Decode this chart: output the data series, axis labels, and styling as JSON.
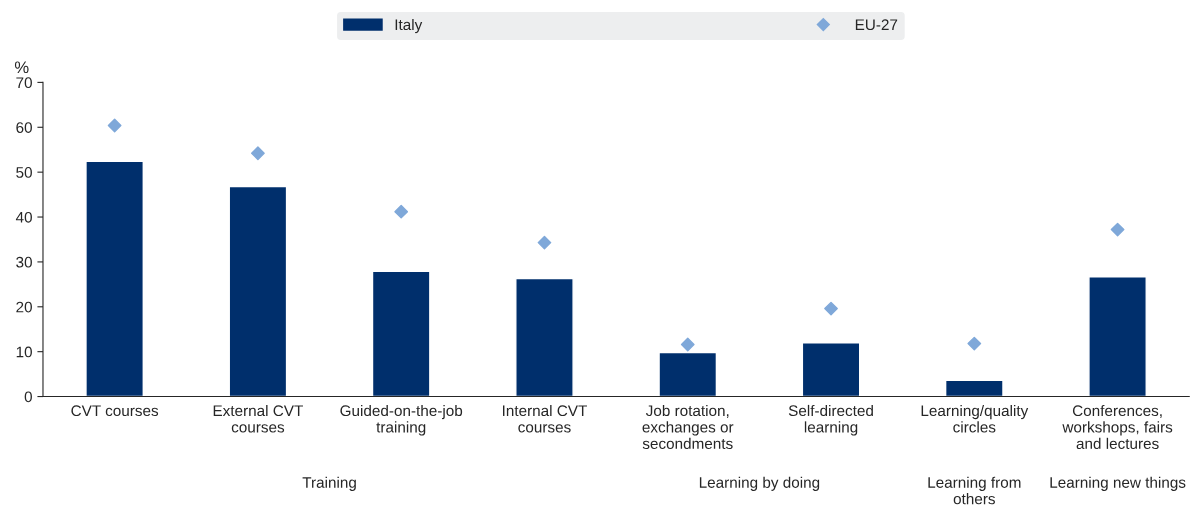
{
  "chart_data": {
    "type": "bar",
    "ylabel": "%",
    "categories": [
      "CVT courses",
      "External CVT\ncourses",
      "Guided-on-the-job\ntraining",
      "Internal CVT\ncourses",
      "Job rotation,\nexchanges or\nsecondments",
      "Self-directed\nlearning",
      "Learning/quality\ncircles",
      "Conferences,\nworkshops, fairs\nand lectures"
    ],
    "series": [
      {
        "name": "Italy",
        "color": "#002f6c",
        "values": [
          52.4,
          46.8,
          27.9,
          26.3,
          9.8,
          12.0,
          3.6,
          26.7
        ]
      },
      {
        "name": "EU-27",
        "type": "scatter",
        "marker": "diamond",
        "color": "#7fa8d9",
        "values": [
          60.4,
          54.2,
          41.2,
          34.3,
          11.6,
          19.6,
          11.8,
          37.2
        ]
      }
    ],
    "ylim": [
      0,
      70
    ],
    "yticks": [
      0,
      10,
      20,
      30,
      40,
      50,
      60,
      70
    ],
    "grid": false,
    "legend": "top",
    "annotations": [
      "Training",
      "Learning by doing",
      "Learning from\nothers",
      "Learning new things"
    ]
  }
}
